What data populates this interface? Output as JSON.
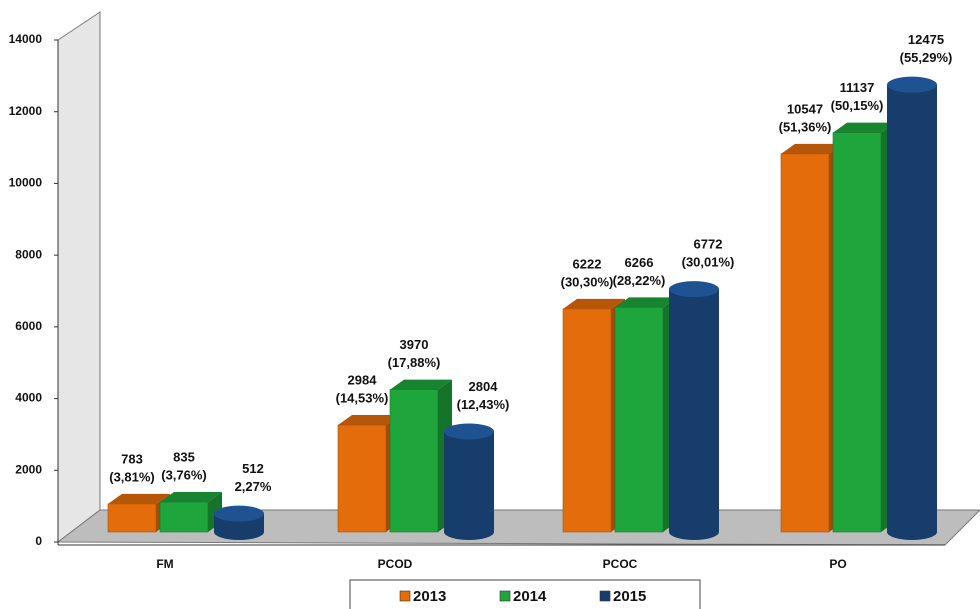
{
  "chart_data": {
    "type": "bar",
    "categories": [
      "FM",
      "PCOD",
      "PCOC",
      "PO"
    ],
    "series": [
      {
        "name": "2013",
        "color": "#e46c0a",
        "values": [
          783,
          2984,
          6222,
          10547
        ],
        "percent_labels": [
          "(3,81%)",
          "(14,53%)",
          "(30,30%)",
          "(51,36%)"
        ]
      },
      {
        "name": "2014",
        "color": "#1ea53c",
        "values": [
          835,
          3970,
          6266,
          11137
        ],
        "percent_labels": [
          "(3,76%)",
          "(17,88%)",
          "(28,22%)",
          "(50,15%)"
        ]
      },
      {
        "name": "2015",
        "color": "#163d6b",
        "values": [
          512,
          2804,
          6772,
          12475
        ],
        "percent_labels": [
          "2,27%",
          "(12,43%)",
          "(30,01%)",
          "(55,29%)"
        ]
      }
    ],
    "ylim": [
      0,
      14000
    ],
    "yticks": [
      0,
      2000,
      4000,
      6000,
      8000,
      10000,
      12000,
      14000
    ]
  }
}
